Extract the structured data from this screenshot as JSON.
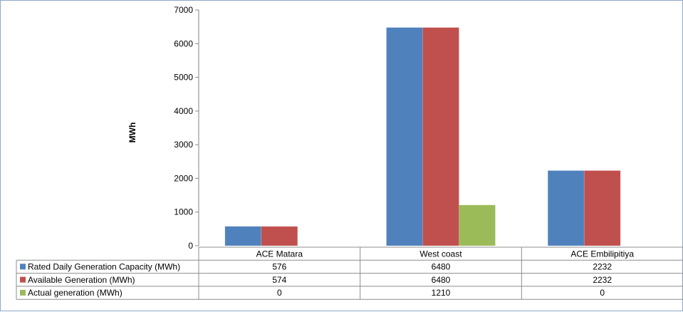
{
  "chart_data": {
    "type": "bar",
    "title": "",
    "xlabel": "",
    "ylabel": "MWh",
    "ylim": [
      0,
      7000
    ],
    "yticks": [
      0,
      1000,
      2000,
      3000,
      4000,
      5000,
      6000,
      7000
    ],
    "categories": [
      "ACE Matara",
      "West coast",
      "ACE Embilipitiya"
    ],
    "grid": false,
    "legend": "data-table",
    "series": [
      {
        "name": "Rated Daily Generation Capacity (MWh)",
        "color": "#4f81bd",
        "values": [
          576,
          6480,
          2232
        ]
      },
      {
        "name": "Available Generation (MWh)",
        "color": "#c0504d",
        "values": [
          574,
          6480,
          2232
        ]
      },
      {
        "name": "Actual generation (MWh)",
        "color": "#9bbb59",
        "values": [
          0,
          1210,
          0
        ]
      }
    ]
  }
}
